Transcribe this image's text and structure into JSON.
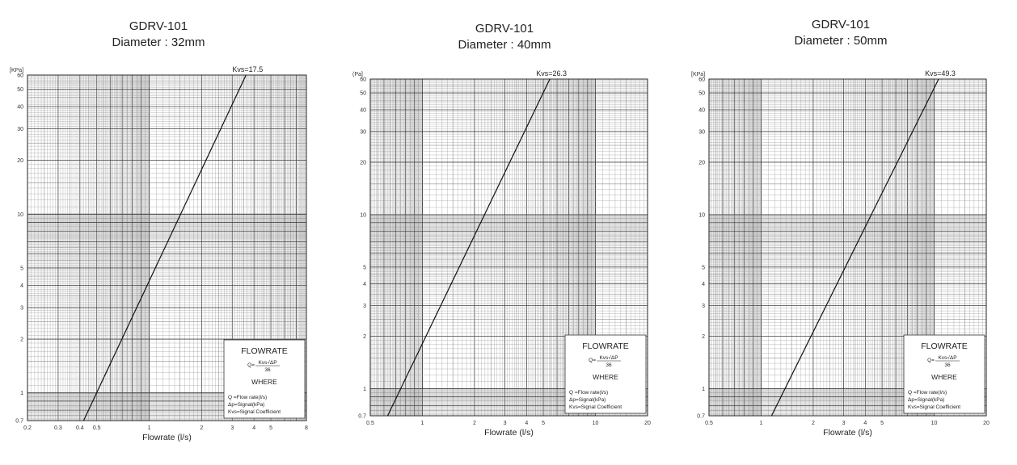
{
  "chart_data": [
    {
      "type": "line",
      "title": "GDRV-101",
      "subtitle": "Diameter : 32mm",
      "xlabel": "Flowrate (l/s)",
      "y_unit": "[KPa]",
      "x_scale": "log",
      "y_scale": "log",
      "xlim": [
        0.2,
        8
      ],
      "ylim": [
        0.7,
        60
      ],
      "x_ticks": [
        0.2,
        0.3,
        0.4,
        0.5,
        1,
        2,
        3,
        4,
        5,
        8
      ],
      "x_tick_labels": [
        "0.2",
        "0.3",
        "0.4",
        "0.5",
        "1",
        "2",
        "3",
        "4",
        "5",
        "8"
      ],
      "y_ticks": [
        0.7,
        1,
        2,
        3,
        4,
        5,
        10,
        20,
        30,
        40,
        50,
        60
      ],
      "y_tick_labels": [
        "0.7",
        "1",
        "2",
        "3",
        "4",
        "5",
        "10",
        "20",
        "30",
        "40",
        "50",
        "60"
      ],
      "grid": true,
      "series": [
        {
          "name": "Kvs=17.5",
          "kvs": 17.5,
          "x": [
            0.42,
            3.6
          ],
          "y": [
            0.7,
            60
          ]
        }
      ],
      "legend": {
        "title": "FLOWRATE",
        "formula": "Q=Kvs√ΔP/36",
        "formula_num": "Kvs√ΔP",
        "formula_den": "36",
        "where": "WHERE",
        "lines": [
          "Q  =Flow rate(l/s)",
          "Δp=Signal(kPa)",
          "Kvs=Signal Coefficient"
        ]
      }
    },
    {
      "type": "line",
      "title": "GDRV-101",
      "subtitle": "Diameter : 40mm",
      "xlabel": "Flowrate (l/s)",
      "y_unit": "(Pa]",
      "x_scale": "log",
      "y_scale": "log",
      "xlim": [
        0.5,
        20
      ],
      "ylim": [
        0.7,
        60
      ],
      "x_ticks": [
        0.5,
        1,
        2,
        3,
        4,
        5,
        10,
        20
      ],
      "x_tick_labels": [
        "0.5",
        "1",
        "2",
        "3",
        "4",
        "5",
        "10",
        "20"
      ],
      "y_ticks": [
        0.7,
        1,
        2,
        3,
        4,
        5,
        10,
        20,
        30,
        40,
        50,
        60
      ],
      "y_tick_labels": [
        "0.7",
        "1",
        "2",
        "3",
        "4",
        "5",
        "10",
        "20",
        "30",
        "40",
        "50",
        "60"
      ],
      "grid": true,
      "series": [
        {
          "name": "Kvs=26.3",
          "kvs": 26.3,
          "x": [
            0.63,
            5.45
          ],
          "y": [
            0.7,
            60
          ]
        }
      ],
      "legend": {
        "title": "FLOWRATE",
        "formula": "Q=Kvs√ΔP/36",
        "formula_num": "Kvs√ΔP",
        "formula_den": "36",
        "where": "WHERE",
        "lines": [
          "Q  =Flow rate(l/s)",
          "Δp=Signal(kPa)",
          "Kvs=Signal Coefficient"
        ]
      }
    },
    {
      "type": "line",
      "title": "GDRV-101",
      "subtitle": "Diameter : 50mm",
      "xlabel": "Flowrate (l/s)",
      "y_unit": "[KPa]",
      "x_scale": "log",
      "y_scale": "log",
      "xlim": [
        0.5,
        20
      ],
      "ylim": [
        0.7,
        60
      ],
      "x_ticks": [
        0.5,
        1,
        2,
        3,
        4,
        5,
        10,
        20
      ],
      "x_tick_labels": [
        "0.5",
        "1",
        "2",
        "3",
        "4",
        "5",
        "10",
        "20"
      ],
      "y_ticks": [
        0.7,
        1,
        2,
        3,
        4,
        5,
        10,
        20,
        30,
        40,
        50,
        60
      ],
      "y_tick_labels": [
        "0.7",
        "1",
        "2",
        "3",
        "4",
        "5",
        "10",
        "20",
        "30",
        "40",
        "50",
        "60"
      ],
      "grid": true,
      "series": [
        {
          "name": "Kvs=49.3",
          "kvs": 49.3,
          "x": [
            1.15,
            10.6
          ],
          "y": [
            0.7,
            60
          ]
        }
      ],
      "legend": {
        "title": "FLOWRATE",
        "formula": "Q=Kvs√ΔP/36",
        "formula_num": "Kvs√ΔP",
        "formula_den": "36",
        "where": "WHERE",
        "lines": [
          "Q =Flow rate(l/s)",
          "Δp=Signal(kPa)",
          "Kvs=Signal Coefficient"
        ]
      }
    }
  ]
}
